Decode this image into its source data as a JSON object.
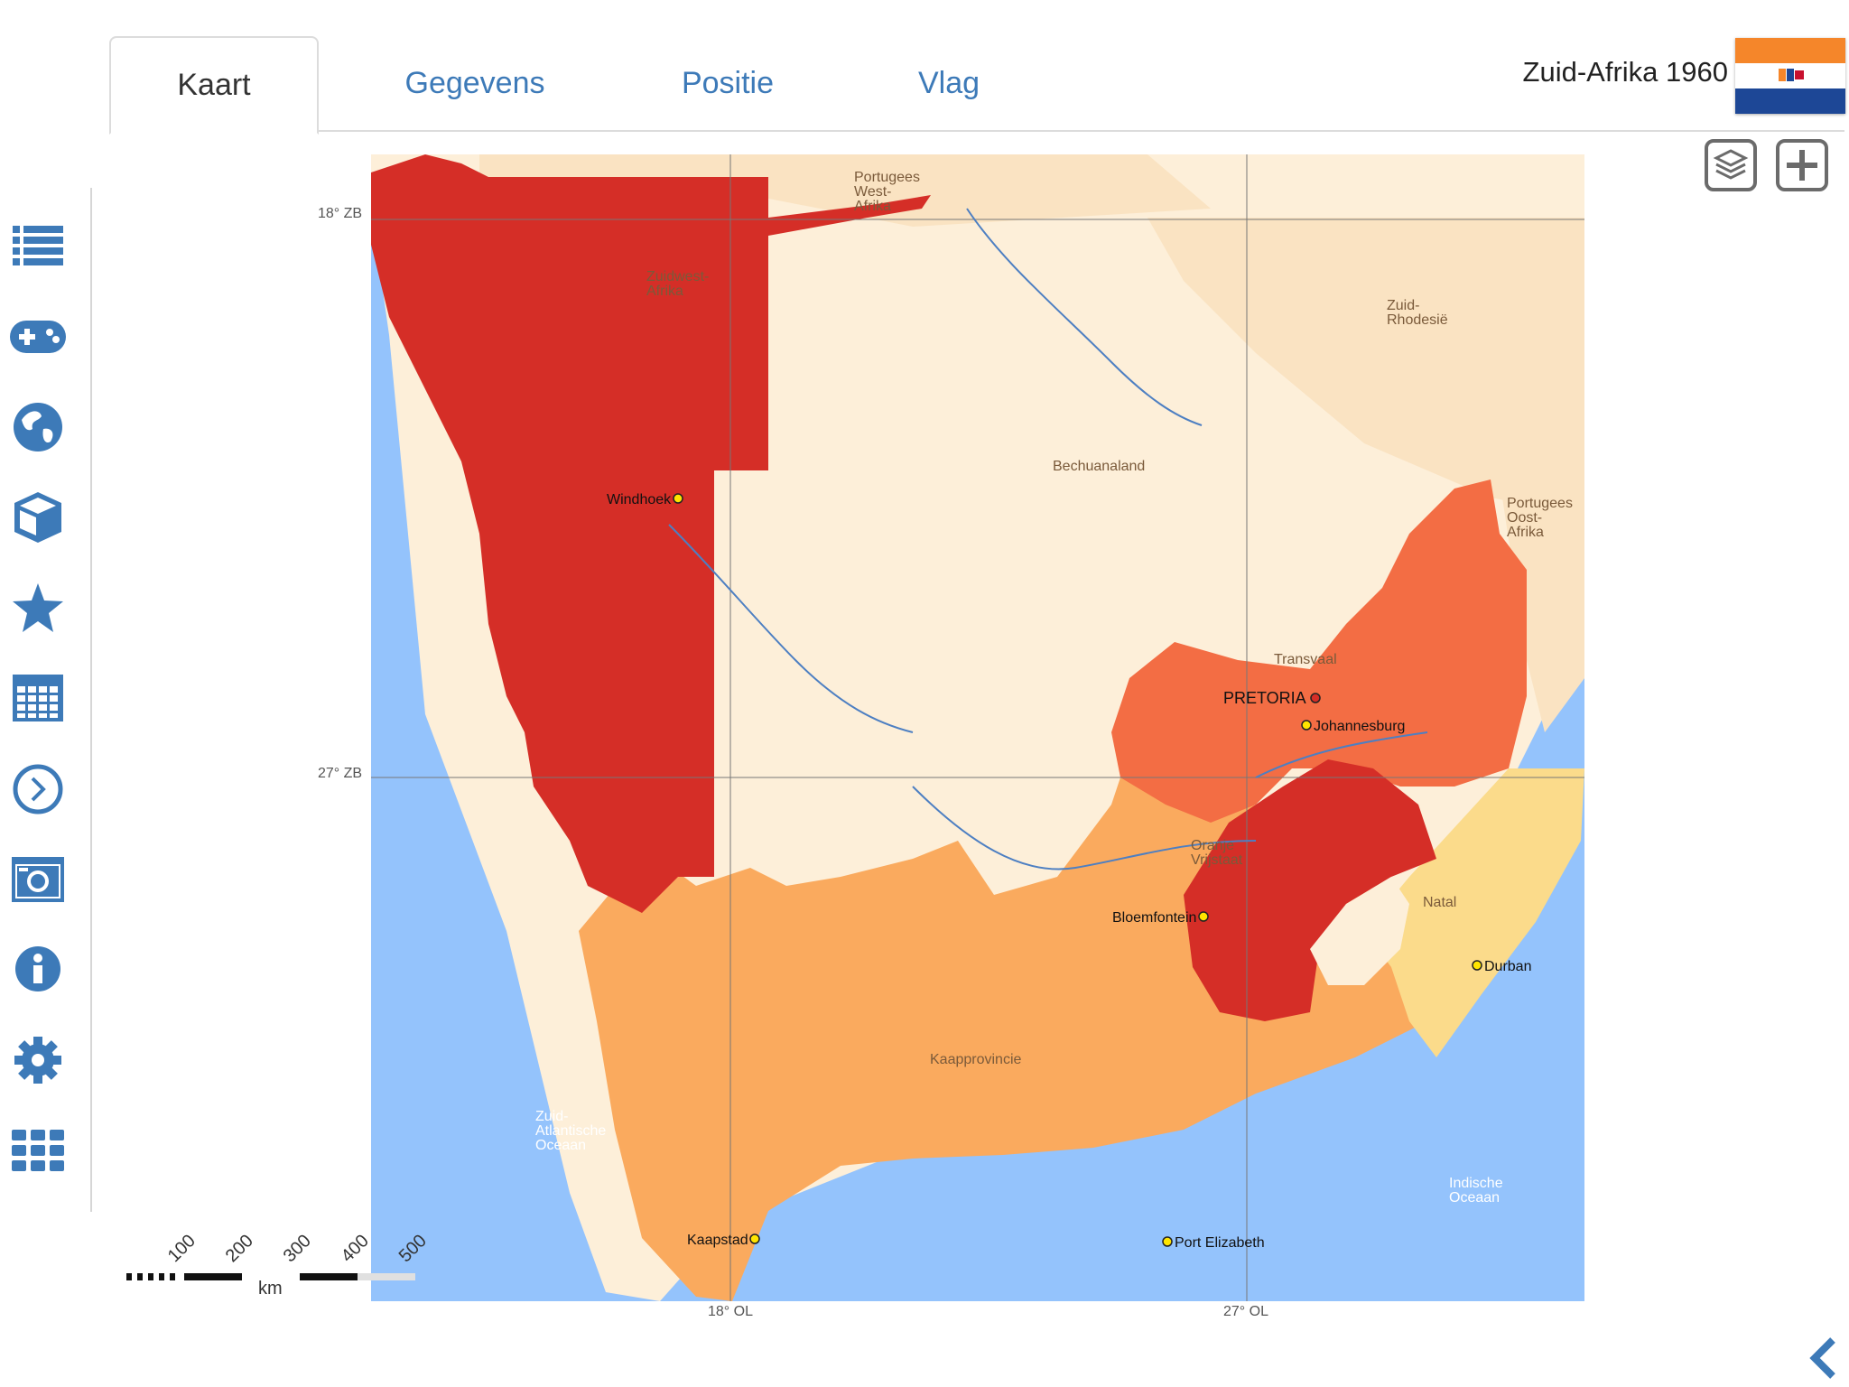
{
  "tabs": [
    {
      "label": "Kaart",
      "active": true
    },
    {
      "label": "Gegevens",
      "active": false
    },
    {
      "label": "Positie",
      "active": false
    },
    {
      "label": "Vlag",
      "active": false
    }
  ],
  "country_title": "Zuid-Afrika 1960",
  "sidebar_icons": [
    "list-icon",
    "gamepad-icon",
    "globe-icon",
    "cube-icon",
    "star-icon",
    "calendar-icon",
    "clock-icon",
    "camera-icon",
    "info-icon",
    "gear-icon",
    "grid-icon"
  ],
  "map_controls": [
    "layers-icon",
    "zoom-in-icon"
  ],
  "grid_labels": {
    "lat1": "18° ZB",
    "lat2": "27° ZB",
    "lon1": "18° OL",
    "lon2": "27° OL"
  },
  "regions": {
    "zuidwest": "Zuidwest-\nAfrika",
    "portugees_west": "Portugees\nWest-\nAfrika",
    "zuid_rhodesie": "Zuid-\nRhodesië",
    "bechuanaland": "Bechuanaland",
    "portugees_oost": "Portugees\nOost-\nAfrika",
    "transvaal": "Transvaal",
    "oranje": "Oranje\nVrijstaat",
    "natal": "Natal",
    "kaap": "Kaapprovincie",
    "atlantisch": "Zuid-\nAtlantische\nOceaan",
    "indisch": "Indische\nOceaan"
  },
  "cities": {
    "windhoek": "Windhoek",
    "pretoria": "PRETORIA",
    "johannesburg": "Johannesburg",
    "bloemfontein": "Bloemfontein",
    "durban": "Durban",
    "kaapstad": "Kaapstad",
    "port_elizabeth": "Port Elizabeth"
  },
  "scale": {
    "ticks": [
      "100",
      "200",
      "300",
      "400",
      "500"
    ],
    "unit": "km"
  },
  "colors": {
    "ocean": "#94c3fc",
    "land": "#fdefd9",
    "land_dark": "#fae3c2",
    "zuidwest": "#d52e27",
    "oranje": "#d52e27",
    "transvaal": "#f36d44",
    "kaap": "#faaa5e",
    "natal": "#fbdb8b",
    "accent": "#3d7ab8"
  }
}
